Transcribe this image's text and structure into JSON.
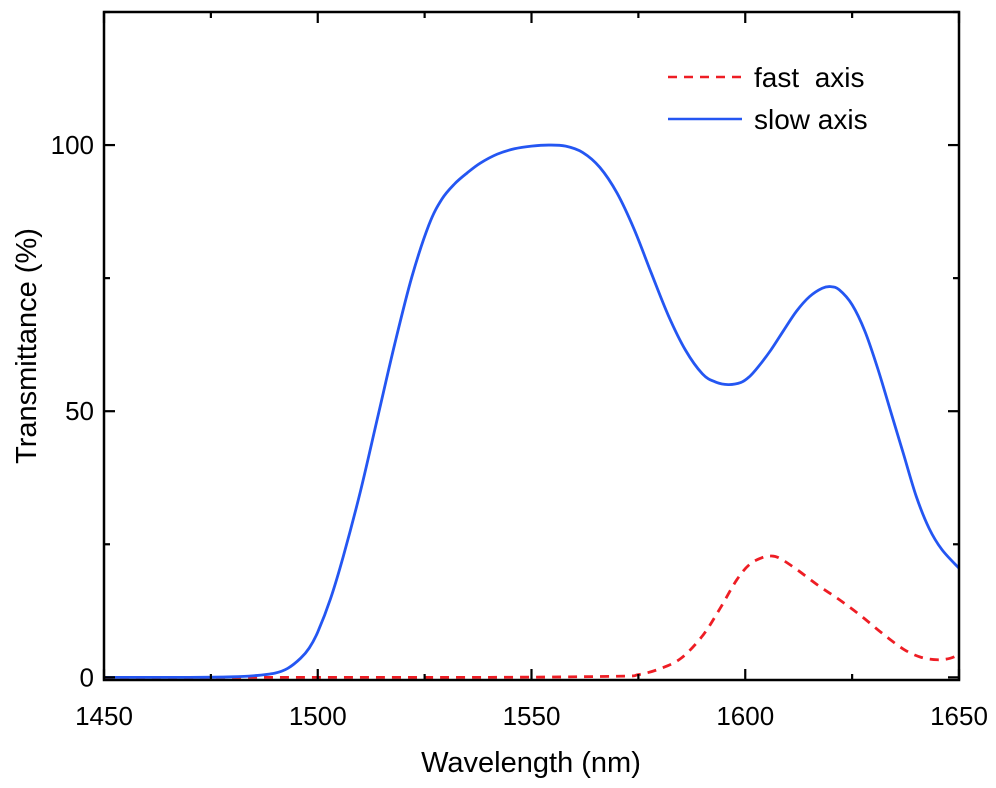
{
  "chart_data": {
    "type": "line",
    "title": "",
    "xlabel": "Wavelength (nm)",
    "ylabel": "Transmittance (%)",
    "xlim": [
      1450,
      1650
    ],
    "ylim": [
      -0.5,
      125
    ],
    "xticks": [
      1450,
      1500,
      1550,
      1600,
      1650
    ],
    "yticks": [
      0,
      50,
      100
    ],
    "legend_position": "top-right",
    "grid": false,
    "series": [
      {
        "name": "fast  axis",
        "style": "dashed",
        "color": "#ee1d24",
        "x": [
          1450,
          1480,
          1500,
          1540,
          1570,
          1575,
          1580,
          1585,
          1590,
          1594,
          1598,
          1601,
          1604,
          1606,
          1608,
          1612,
          1617,
          1622,
          1627,
          1632,
          1637,
          1641,
          1645,
          1648,
          1650
        ],
        "y": [
          0,
          0,
          0,
          0,
          0.2,
          0.5,
          1.6,
          3.6,
          7.8,
          12.8,
          18.3,
          21.2,
          22.5,
          22.8,
          22.4,
          20.3,
          17.3,
          14.6,
          11.6,
          8.3,
          5.3,
          3.8,
          3.3,
          3.6,
          4.3
        ]
      },
      {
        "name": "slow axis",
        "color": "#2456f2",
        "x": [
          1450,
          1470,
          1480,
          1485,
          1490,
          1493,
          1496,
          1498,
          1500,
          1503,
          1506,
          1510,
          1514,
          1518,
          1522,
          1526,
          1529,
          1532,
          1535,
          1538,
          1542,
          1546,
          1550,
          1554,
          1558,
          1562,
          1566,
          1570,
          1574,
          1578,
          1582,
          1586,
          1590,
          1593,
          1596,
          1599,
          1601,
          1603,
          1606,
          1609,
          1612,
          1615,
          1618,
          1620,
          1622,
          1625,
          1628,
          1631,
          1634,
          1637,
          1640,
          1643,
          1646,
          1650
        ],
        "y": [
          0,
          0,
          0.1,
          0.3,
          0.8,
          1.7,
          3.6,
          5.5,
          8.5,
          14.8,
          22.8,
          35.0,
          48.8,
          62.6,
          75.2,
          85.0,
          89.8,
          92.7,
          94.8,
          96.6,
          98.3,
          99.3,
          99.8,
          100.0,
          99.8,
          98.6,
          95.8,
          91.0,
          84.2,
          76.0,
          68.0,
          61.5,
          57.0,
          55.5,
          55.0,
          55.4,
          56.5,
          58.3,
          61.5,
          65.2,
          68.8,
          71.5,
          73.1,
          73.4,
          72.8,
          70.0,
          65.0,
          58.0,
          50.0,
          42.0,
          34.0,
          28.0,
          24.0,
          20.5
        ]
      }
    ]
  }
}
